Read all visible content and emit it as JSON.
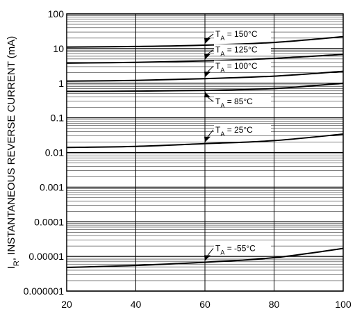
{
  "chart_data": {
    "type": "line",
    "title": "",
    "ylabel": "I_R, INSTANTANEOUS REVERSE CURRENT (mA)",
    "ylabel_main": "I",
    "ylabel_sub": "R",
    "ylabel_rest": ", INSTANTANEOUS REVERSE CURRENT (mA)",
    "xlabel": "",
    "x_scale": "linear",
    "y_scale": "log",
    "xlim": [
      20,
      100
    ],
    "ylim": [
      1e-06,
      100
    ],
    "x_ticks": [
      20,
      40,
      60,
      80,
      100
    ],
    "x_tick_labels": [
      "20",
      "40",
      "60",
      "80",
      "100"
    ],
    "y_ticks": [
      100,
      10,
      1,
      0.1,
      0.01,
      0.001,
      0.0001,
      1e-05,
      1e-06
    ],
    "y_tick_labels": [
      "100",
      "10",
      "1",
      "0.1",
      "0.01",
      "0.001",
      "0.0001",
      "0.00001",
      "0.000001"
    ],
    "grid": true,
    "series": [
      {
        "label_main": "T",
        "label_sub": "A",
        "label_rest": " = 150°C",
        "x": [
          20,
          40,
          60,
          80,
          100
        ],
        "y": [
          11,
          11.5,
          12.5,
          15,
          22
        ]
      },
      {
        "label_main": "T",
        "label_sub": "A",
        "label_rest": " = 125°C",
        "x": [
          20,
          40,
          60,
          80,
          100
        ],
        "y": [
          3.8,
          4.0,
          4.4,
          5.2,
          6.8
        ]
      },
      {
        "label_main": "T",
        "label_sub": "A",
        "label_rest": " = 100°C",
        "x": [
          20,
          40,
          60,
          80,
          100
        ],
        "y": [
          1.15,
          1.2,
          1.35,
          1.6,
          2.2
        ]
      },
      {
        "label_main": "T",
        "label_sub": "A",
        "label_rest": " = 85°C",
        "x": [
          20,
          40,
          60,
          80,
          100
        ],
        "y": [
          0.58,
          0.59,
          0.62,
          0.7,
          1.0
        ]
      },
      {
        "label_main": "T",
        "label_sub": "A",
        "label_rest": " = 25°C",
        "x": [
          20,
          40,
          60,
          80,
          100
        ],
        "y": [
          0.014,
          0.015,
          0.018,
          0.022,
          0.034
        ]
      },
      {
        "label_main": "T",
        "label_sub": "A",
        "label_rest": " = -55°C",
        "x": [
          20,
          40,
          60,
          80,
          100
        ],
        "y": [
          4.8e-06,
          5.5e-06,
          6.8e-06,
          9.2e-06,
          1.7e-05
        ]
      }
    ]
  }
}
